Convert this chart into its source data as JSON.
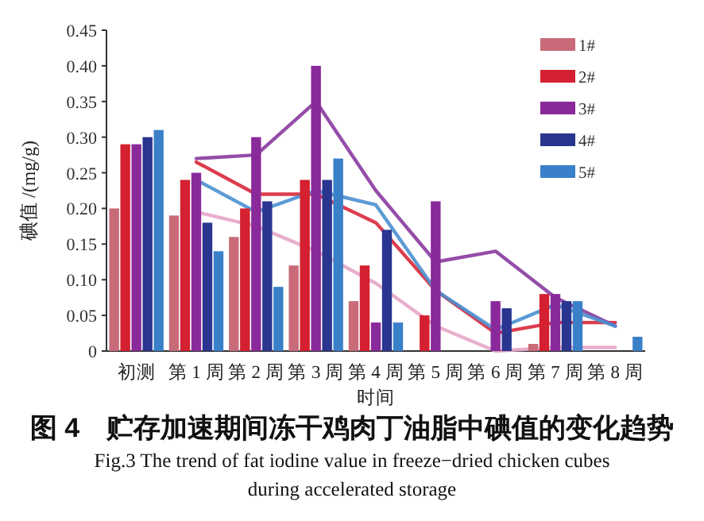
{
  "chart_data": {
    "type": "bar",
    "title": "图 4　贮存加速期间冻干鸡肉丁油脂中碘值的变化趋势",
    "subtitle": "Fig.3 The trend of fat iodine value in freeze−dried chicken cubes during accelerated storage",
    "xlabel": "时间",
    "ylabel": "碘值 /(mg/g)",
    "categories": [
      "初测",
      "第 1 周",
      "第 2 周",
      "第 3 周",
      "第 4 周",
      "第 5 周",
      "第 6 周",
      "第 7 周",
      "第 8 周"
    ],
    "series": [
      {
        "name": "1#",
        "color": "#c86a78",
        "values": [
          0.2,
          0.19,
          0.16,
          0.12,
          0.07,
          0,
          0,
          0.01,
          0
        ]
      },
      {
        "name": "2#",
        "color": "#d42030",
        "values": [
          0.29,
          0.24,
          0.2,
          0.24,
          0.12,
          0.05,
          0,
          0.08,
          0
        ]
      },
      {
        "name": "3#",
        "color": "#8a2a9a",
        "values": [
          0.29,
          0.25,
          0.3,
          0.4,
          0.04,
          0.21,
          0.07,
          0.08,
          0
        ]
      },
      {
        "name": "4#",
        "color": "#2a3590",
        "values": [
          0.3,
          0.18,
          0.21,
          0.24,
          0.17,
          0,
          0.06,
          0.07,
          0
        ]
      },
      {
        "name": "5#",
        "color": "#3a80c8",
        "values": [
          0.31,
          0.14,
          0.09,
          0.27,
          0.04,
          0,
          0,
          0.07,
          0.02
        ]
      },
      {
        "type": "line",
        "color": "#e6a6c8",
        "values": [
          null,
          0.195,
          0.175,
          0.14,
          0.095,
          0.035,
          0,
          0.005,
          0.005
        ]
      },
      {
        "type": "line",
        "color": "#d8283a",
        "values": [
          null,
          0.265,
          0.22,
          0.22,
          0.18,
          0.085,
          0.025,
          0.04,
          0.04
        ]
      },
      {
        "type": "line",
        "color": "#8a3aa0",
        "values": [
          null,
          0.27,
          0.275,
          0.35,
          0.225,
          0.125,
          0.14,
          0.075,
          0.035
        ]
      },
      {
        "type": "line",
        "color": "#4a90d0",
        "values": [
          null,
          0.24,
          0.195,
          0.225,
          0.205,
          0.085,
          0.03,
          0.065,
          0.035
        ]
      }
    ],
    "ylim": [
      0,
      0.45
    ],
    "yticks": [
      0,
      0.05,
      {
        "value": 0.1,
        "label": "0.10"
      },
      0.15,
      {
        "value": 0.2,
        "label": "0.20"
      },
      0.25,
      {
        "value": 0.3,
        "label": "0.30"
      },
      0.35,
      {
        "value": 0.4,
        "label": "0.40"
      },
      0.45
    ],
    "legend": "top right",
    "grid": false
  }
}
